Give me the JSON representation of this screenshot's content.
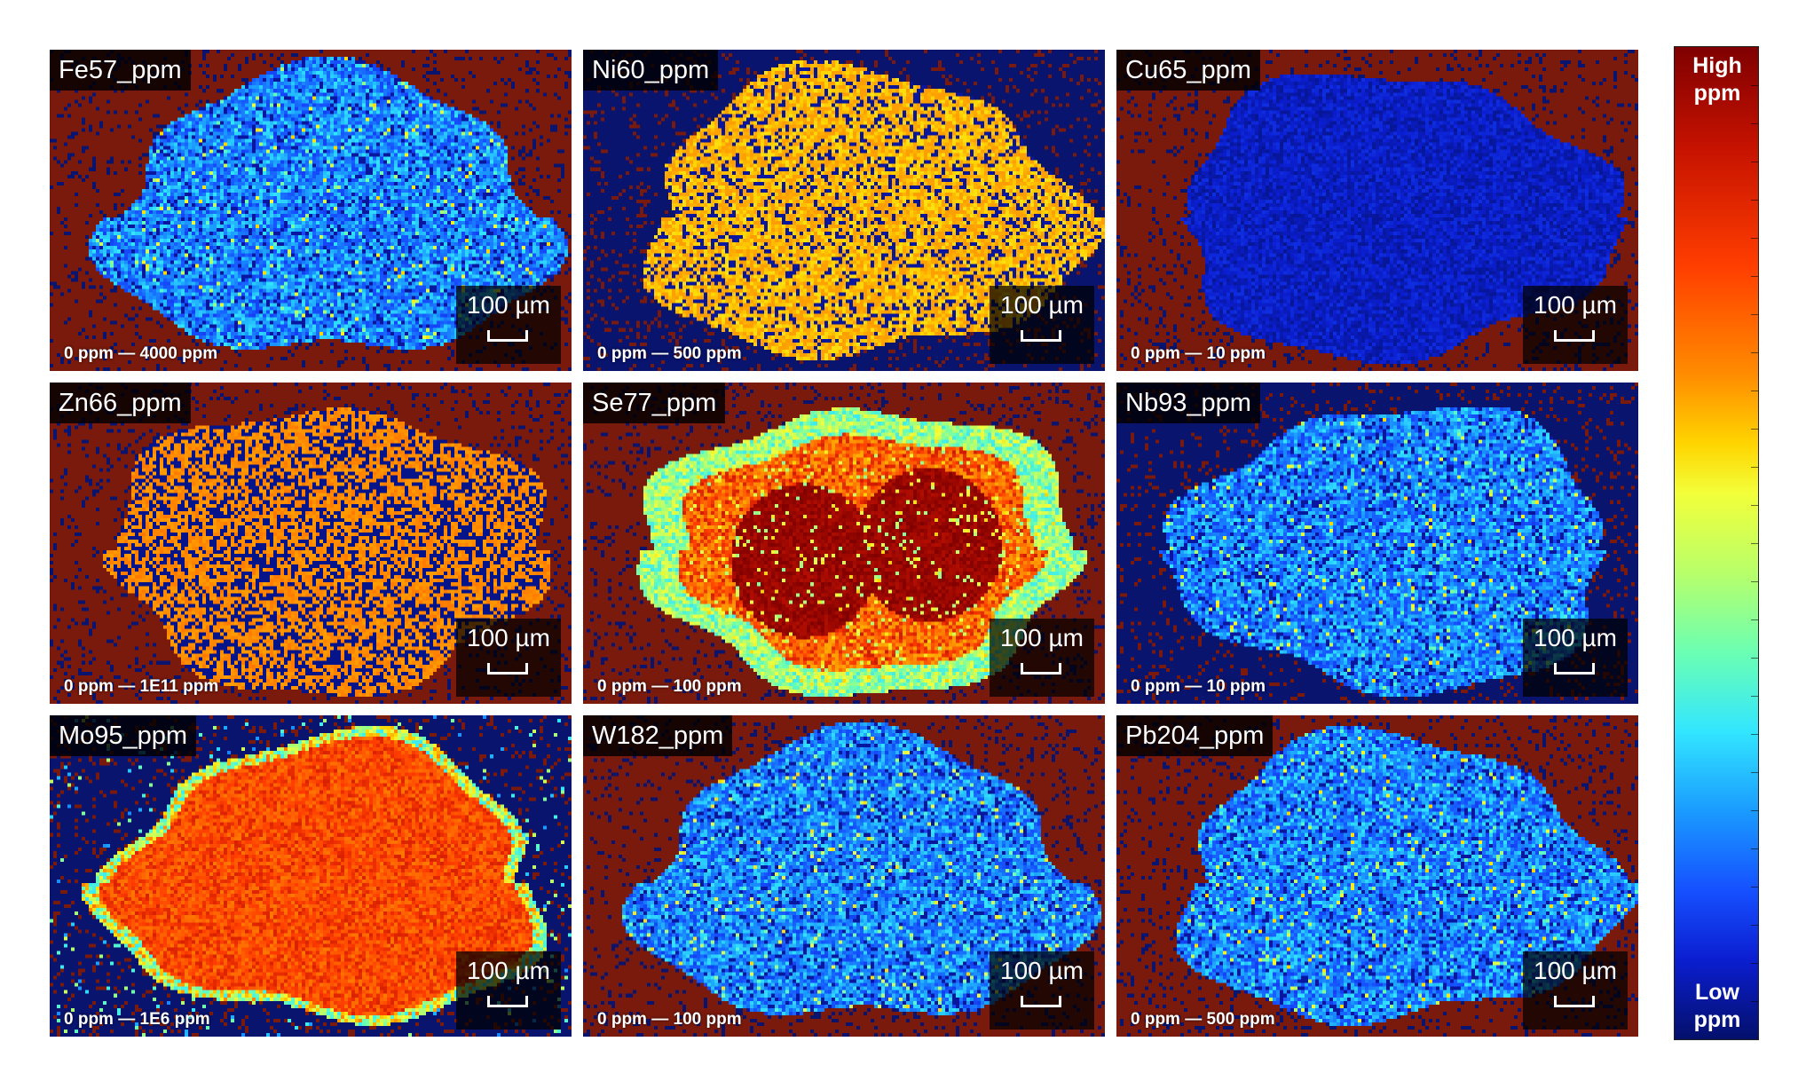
{
  "panels": [
    {
      "id": "fe57",
      "label": "Fe57_ppm",
      "range": "0 ppm — 4000 ppm",
      "scale": "100 µm",
      "pattern": "blue-speckle",
      "bg": "#7a1a0c"
    },
    {
      "id": "ni60",
      "label": "Ni60_ppm",
      "range": "0 ppm — 500 ppm",
      "scale": "100 µm",
      "pattern": "yellow-speckle",
      "bg": "#08146e"
    },
    {
      "id": "cu65",
      "label": "Cu65_ppm",
      "range": "0 ppm — 10 ppm",
      "scale": "100 µm",
      "pattern": "dark-blue",
      "bg": "#7a1a0c"
    },
    {
      "id": "zn66",
      "label": "Zn66_ppm",
      "range": "0 ppm — 1E11 ppm",
      "scale": "100 µm",
      "pattern": "orange-speckle",
      "bg": "#7a1a0c"
    },
    {
      "id": "se77",
      "label": "Se77_ppm",
      "range": "0 ppm — 100 ppm",
      "scale": "100 µm",
      "pattern": "rings",
      "bg": "#7a1a0c"
    },
    {
      "id": "nb93",
      "label": "Nb93_ppm",
      "range": "0 ppm — 10 ppm",
      "scale": "100 µm",
      "pattern": "blue-speckle",
      "bg": "#08146e"
    },
    {
      "id": "mo95",
      "label": "Mo95_ppm",
      "range": "0 ppm — 1E6 ppm",
      "scale": "100 µm",
      "pattern": "red-orange",
      "bg": "#08146e"
    },
    {
      "id": "w182",
      "label": "W182_ppm",
      "range": "0 ppm — 100 ppm",
      "scale": "100 µm",
      "pattern": "blue-speckle",
      "bg": "#7a1a0c"
    },
    {
      "id": "pb204",
      "label": "Pb204_ppm",
      "range": "0 ppm — 500 ppm",
      "scale": "100 µm",
      "pattern": "blue-speckle",
      "bg": "#7a1a0c"
    }
  ],
  "colorbar": {
    "high": "High\nppm",
    "low": "Low\nppm",
    "high_line1": "High",
    "high_line2": "ppm",
    "low_line1": "Low",
    "low_line2": "ppm"
  }
}
